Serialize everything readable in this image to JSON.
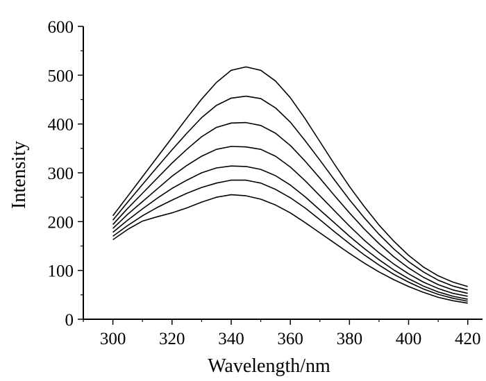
{
  "chart_data": {
    "type": "line",
    "title": "",
    "xlabel": "Wavelength/nm",
    "ylabel": "Intensity",
    "xlim": [
      290,
      425
    ],
    "ylim": [
      0,
      600
    ],
    "x_ticks": [
      300,
      320,
      340,
      360,
      380,
      400,
      420
    ],
    "y_ticks": [
      0,
      100,
      200,
      300,
      400,
      500,
      600
    ],
    "grid": false,
    "legend": "none",
    "line_color": "#000000",
    "x": [
      300,
      305,
      310,
      315,
      320,
      325,
      330,
      335,
      340,
      345,
      350,
      355,
      360,
      365,
      370,
      375,
      380,
      385,
      390,
      395,
      400,
      405,
      410,
      415,
      420
    ],
    "series": [
      {
        "values": [
          212,
          252,
          292,
          332,
          372,
          412,
          451,
          485,
          510,
          517,
          510,
          488,
          454,
          411,
          364,
          317,
          272,
          231,
          193,
          160,
          131,
          107,
          89,
          76,
          67
        ]
      },
      {
        "values": [
          203,
          240,
          276,
          312,
          347,
          381,
          413,
          438,
          453,
          457,
          452,
          433,
          404,
          366,
          326,
          285,
          245,
          208,
          174,
          144,
          118,
          97,
          80,
          68,
          60
        ]
      },
      {
        "values": [
          194,
          227,
          258,
          289,
          320,
          348,
          374,
          393,
          402,
          403,
          397,
          381,
          356,
          324,
          289,
          253,
          218,
          185,
          155,
          128,
          105,
          86,
          71,
          60,
          53
        ]
      },
      {
        "values": [
          186,
          215,
          241,
          267,
          293,
          315,
          334,
          348,
          354,
          353,
          348,
          334,
          312,
          284,
          253,
          222,
          191,
          162,
          136,
          113,
          93,
          76,
          63,
          53,
          47
        ]
      },
      {
        "values": [
          178,
          203,
          226,
          248,
          268,
          285,
          300,
          310,
          314,
          313,
          307,
          294,
          275,
          251,
          224,
          197,
          170,
          145,
          122,
          101,
          83,
          68,
          56,
          47,
          41
        ]
      },
      {
        "values": [
          170,
          192,
          212,
          229,
          244,
          258,
          270,
          279,
          285,
          285,
          279,
          266,
          249,
          228,
          204,
          179,
          155,
          132,
          111,
          92,
          76,
          62,
          51,
          43,
          37
        ]
      },
      {
        "values": [
          163,
          184,
          201,
          210,
          218,
          228,
          240,
          250,
          255,
          253,
          246,
          234,
          218,
          198,
          177,
          156,
          135,
          115,
          97,
          81,
          67,
          55,
          45,
          38,
          33
        ]
      }
    ]
  }
}
